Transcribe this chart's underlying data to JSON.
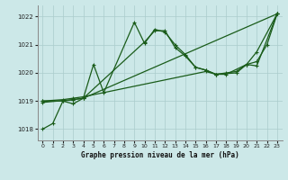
{
  "title": "Graphe pression niveau de la mer (hPa)",
  "bg_color": "#cce8e8",
  "grid_color": "#aacccc",
  "line_color": "#1a5c1a",
  "xlim": [
    -0.5,
    23.5
  ],
  "ylim": [
    1017.6,
    1022.4
  ],
  "yticks": [
    1018,
    1019,
    1020,
    1021,
    1022
  ],
  "xticks": [
    0,
    1,
    2,
    3,
    4,
    5,
    6,
    7,
    8,
    9,
    10,
    11,
    12,
    13,
    14,
    15,
    16,
    17,
    18,
    19,
    20,
    21,
    22,
    23
  ],
  "lines": [
    {
      "x": [
        0,
        1,
        2,
        3,
        4,
        5,
        6,
        9,
        10,
        11,
        12,
        13,
        14,
        15,
        16,
        17,
        18,
        20,
        21,
        23
      ],
      "y": [
        1018.0,
        1018.2,
        1019.0,
        1018.9,
        1019.1,
        1020.3,
        1019.3,
        1021.8,
        1021.05,
        1021.55,
        1021.45,
        1021.0,
        1020.65,
        1020.2,
        1020.1,
        1019.95,
        1019.95,
        1020.3,
        1020.75,
        1022.1
      ]
    },
    {
      "x": [
        0,
        2,
        3,
        4,
        10,
        11,
        12,
        13,
        14,
        15,
        16,
        17,
        19,
        20,
        21,
        23
      ],
      "y": [
        1019.0,
        1019.0,
        1019.05,
        1019.1,
        1021.1,
        1021.5,
        1021.5,
        1020.9,
        1020.6,
        1020.2,
        1020.1,
        1019.95,
        1020.0,
        1020.3,
        1020.25,
        1022.1
      ]
    },
    {
      "x": [
        0,
        2,
        3,
        4,
        16,
        17,
        18,
        19,
        20,
        21,
        22,
        23
      ],
      "y": [
        1019.0,
        1019.05,
        1019.1,
        1019.15,
        1020.05,
        1019.95,
        1020.0,
        1020.05,
        1020.3,
        1020.4,
        1021.0,
        1022.1
      ]
    },
    {
      "x": [
        0,
        3,
        4,
        23
      ],
      "y": [
        1018.95,
        1019.05,
        1019.1,
        1022.1
      ]
    }
  ]
}
